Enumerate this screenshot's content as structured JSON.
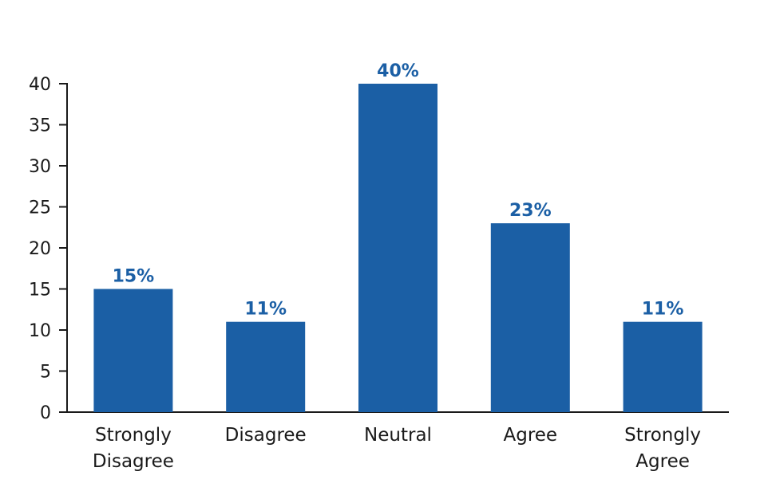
{
  "chart_data": {
    "type": "bar",
    "categories": [
      [
        "Strongly",
        "Disagree"
      ],
      [
        "Disagree"
      ],
      [
        "Neutral"
      ],
      [
        "Agree"
      ],
      [
        "Strongly",
        "Agree"
      ]
    ],
    "values": [
      15,
      11,
      40,
      23,
      11
    ],
    "data_labels": [
      "15%",
      "11%",
      "40%",
      "23%",
      "11%"
    ],
    "yticks": [
      0,
      5,
      10,
      15,
      20,
      25,
      30,
      35,
      40
    ],
    "ylim": [
      0,
      40
    ],
    "title": "",
    "xlabel": "",
    "ylabel": "",
    "grid": false,
    "bar_color": "#1b5fa5",
    "axis_color": "#1a1a1a"
  }
}
